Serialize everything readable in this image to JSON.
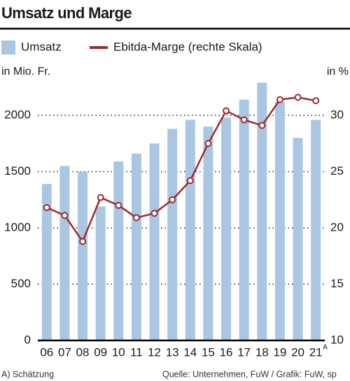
{
  "chart_data": {
    "type": "bar",
    "title": "Umsatz und Marge",
    "y_label": "in Mio. Fr.",
    "y2_label": "in %",
    "categories": [
      "06",
      "07",
      "08",
      "09",
      "10",
      "11",
      "12",
      "13",
      "14",
      "15",
      "16",
      "17",
      "18",
      "19",
      "20",
      "21"
    ],
    "category_superscript": "A",
    "series": [
      {
        "name": "Umsatz",
        "type": "bar",
        "color": "#a9c7e2",
        "values": [
          1390,
          1550,
          1500,
          1190,
          1590,
          1660,
          1750,
          1880,
          1960,
          1900,
          1980,
          2140,
          2290,
          2120,
          1800,
          1960
        ]
      },
      {
        "name": "Ebitda-Marge (rechte Skala)",
        "type": "line",
        "color": "#9e2a2b",
        "axis": "y2",
        "values": [
          21.8,
          21.1,
          18.8,
          22.7,
          22.0,
          20.9,
          21.3,
          22.5,
          24.2,
          27.5,
          30.4,
          29.6,
          29.1,
          31.4,
          31.6,
          31.3
        ]
      }
    ],
    "ylim": [
      0,
      2300
    ],
    "yticks": [
      0,
      500,
      1000,
      1500,
      2000
    ],
    "y2lim": [
      10,
      33
    ],
    "y2ticks": [
      10,
      15,
      20,
      25,
      30
    ],
    "grid": true,
    "footnote": "A) Schätzung",
    "source": "Quelle: Unternehmen, FuW / Grafik: FuW, sp"
  }
}
